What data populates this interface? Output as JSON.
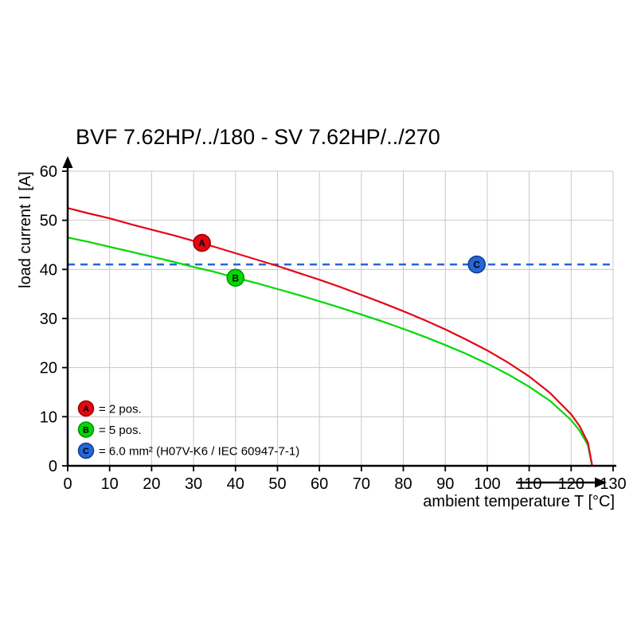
{
  "chart_data": {
    "type": "line",
    "title": "BVF 7.62HP/../180 - SV 7.62HP/../270",
    "xlabel": "ambient temperature T [°C]",
    "ylabel": "load current I [A]",
    "xlim": [
      0,
      130
    ],
    "ylim": [
      0,
      60
    ],
    "xticks": [
      0,
      10,
      20,
      30,
      40,
      50,
      60,
      70,
      80,
      90,
      100,
      110,
      120,
      130
    ],
    "yticks": [
      0,
      10,
      20,
      30,
      40,
      50,
      60
    ],
    "grid": true,
    "grid_color": "#c8c8c8",
    "legend_position": "bottom-left",
    "series": [
      {
        "name": "A",
        "label": "= 2 pos.",
        "color": "#e30613",
        "dark_color": "#9b0000",
        "marker": {
          "x": 32,
          "y": 45.4
        },
        "x": [
          0,
          5,
          10,
          15,
          20,
          25,
          30,
          35,
          40,
          45,
          50,
          55,
          60,
          65,
          70,
          75,
          80,
          85,
          90,
          95,
          100,
          105,
          110,
          115,
          120,
          122,
          124,
          125
        ],
        "y": [
          52.5,
          51.4,
          50.4,
          49.2,
          48.1,
          47.0,
          45.8,
          44.6,
          43.3,
          42.0,
          40.7,
          39.3,
          37.9,
          36.4,
          34.8,
          33.2,
          31.5,
          29.7,
          27.8,
          25.7,
          23.5,
          21.0,
          18.2,
          14.8,
          10.5,
          8.1,
          4.7,
          0
        ]
      },
      {
        "name": "B",
        "label": "= 5 pos.",
        "color": "#00d900",
        "dark_color": "#009100",
        "marker": {
          "x": 40,
          "y": 38.3
        },
        "x": [
          0,
          5,
          10,
          15,
          20,
          25,
          30,
          35,
          40,
          45,
          50,
          55,
          60,
          65,
          70,
          75,
          80,
          85,
          90,
          95,
          100,
          105,
          110,
          115,
          120,
          122,
          124,
          125
        ],
        "y": [
          46.5,
          45.6,
          44.6,
          43.6,
          42.6,
          41.6,
          40.5,
          39.5,
          38.3,
          37.2,
          36.0,
          34.8,
          33.5,
          32.2,
          30.8,
          29.4,
          27.9,
          26.3,
          24.6,
          22.8,
          20.8,
          18.6,
          16.1,
          13.2,
          9.3,
          7.2,
          4.2,
          0
        ]
      }
    ],
    "reference_line": {
      "name": "C",
      "label": "= 6.0 mm² (H07V-K6 / IEC 60947-7-1)",
      "y": 41,
      "style": "dashed",
      "color": "#2565d9",
      "dark_color": "#123f8f",
      "marker": {
        "x": 97.5,
        "y": 41
      }
    }
  }
}
